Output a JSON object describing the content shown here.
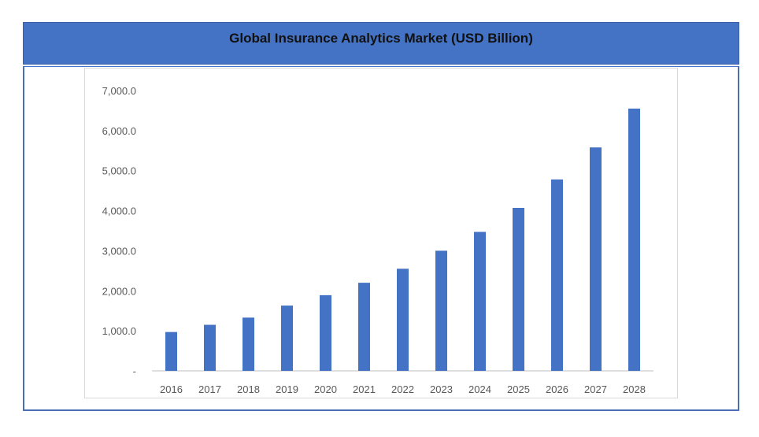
{
  "header": {
    "title": "Global Insurance Analytics Market (USD Billion)"
  },
  "colors": {
    "bar": "#4472c4",
    "banner": "#4472c4",
    "axis": "#bfbfbf",
    "tick_text": "#595959"
  },
  "chart_data": {
    "type": "bar",
    "title": "Global Insurance Analytics Market (USD Billion)",
    "xlabel": "",
    "ylabel": "",
    "categories": [
      "2016",
      "2017",
      "2018",
      "2019",
      "2020",
      "2021",
      "2022",
      "2023",
      "2024",
      "2025",
      "2026",
      "2027",
      "2028"
    ],
    "values": [
      970,
      1150,
      1330,
      1630,
      1890,
      2200,
      2550,
      3000,
      3470,
      4070,
      4780,
      5580,
      6550
    ],
    "ylim": [
      0,
      7000
    ],
    "yticks": [
      0,
      1000,
      2000,
      3000,
      4000,
      5000,
      6000,
      7000
    ],
    "ytick_labels": [
      "-",
      "1,000.0",
      "2,000.0",
      "3,000.0",
      "4,000.0",
      "5,000.0",
      "6,000.0",
      "7,000.0"
    ],
    "grid": false,
    "legend": "none"
  }
}
